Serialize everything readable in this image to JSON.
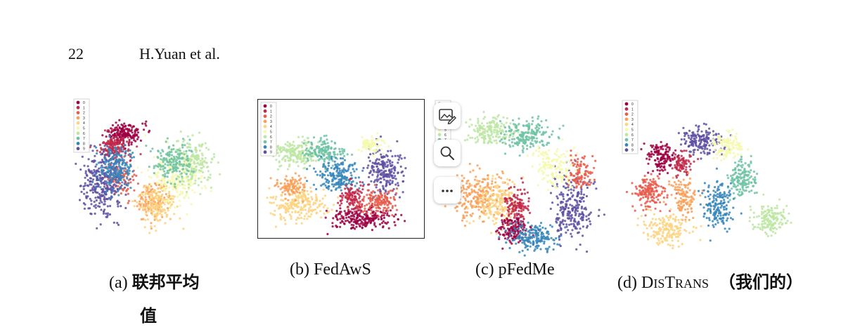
{
  "header": {
    "page_number": "22",
    "authors": "H.Yuan et al."
  },
  "palette": [
    "#9e0142",
    "#c2294a",
    "#e75c4b",
    "#f8a05a",
    "#fdd481",
    "#f4f9ab",
    "#bde6a3",
    "#6ec3a5",
    "#3686bb",
    "#5e4fa2"
  ],
  "legend_labels": [
    "0",
    "1",
    "2",
    "3",
    "4",
    "5",
    "6",
    "7",
    "8",
    "9"
  ],
  "panels": [
    {
      "caption_prefix": "(a)",
      "caption_main": "联邦平均",
      "caption_cont": "值",
      "framed": false
    },
    {
      "caption_prefix": "(b)",
      "caption_main": "FedAwS",
      "framed": true
    },
    {
      "caption_prefix": "(c)",
      "caption_main": "pFedMe",
      "framed": false
    },
    {
      "caption_prefix": "(d)",
      "caption_d1": "D",
      "caption_sc1": "IS",
      "caption_d2": "T",
      "caption_sc2": "RANS",
      "caption_suffix": "（我们的）",
      "framed": false
    }
  ],
  "toolbar": {
    "items": [
      {
        "icon": "edit-image-icon"
      },
      {
        "icon": "search-icon"
      },
      {
        "icon": "more-options-icon"
      }
    ]
  }
}
